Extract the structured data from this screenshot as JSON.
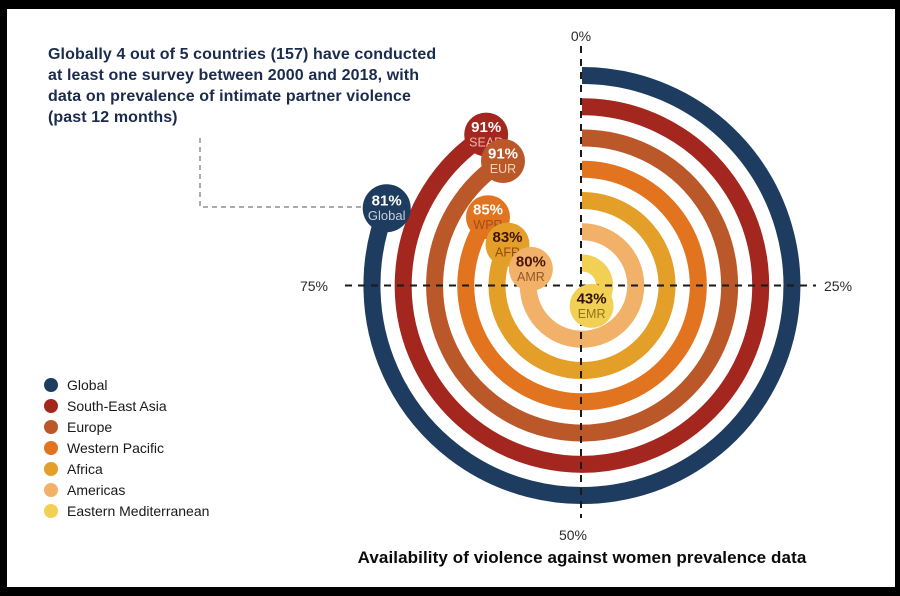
{
  "annotation": {
    "text": "Globally 4 out of 5 countries (157) have conducted at least one survey between 2000 and 2018, with data on prevalence of intimate partner violence (past 12 months)"
  },
  "chart_data": {
    "type": "radial-bar",
    "title": "Availability of violence against women prevalence data",
    "unit": "%",
    "direction": "clockwise-from-top",
    "angle_range_pct": [
      0,
      100
    ],
    "axis_ticks": [
      {
        "label": "0%",
        "value": 0
      },
      {
        "label": "25%",
        "value": 25
      },
      {
        "label": "50%",
        "value": 50
      },
      {
        "label": "75%",
        "value": 75
      }
    ],
    "series": [
      {
        "name": "Global",
        "code": "Global",
        "value": 81,
        "color": "#1d3c5f",
        "value_color": "#ffffff",
        "code_color": "#c7cfdc"
      },
      {
        "name": "South-East Asia",
        "code": "SEAR",
        "value": 91,
        "color": "#a3271f",
        "value_color": "#ffffff",
        "code_color": "#f0b5ac"
      },
      {
        "name": "Europe",
        "code": "EUR",
        "value": 91,
        "color": "#ba5829",
        "value_color": "#ffffff",
        "code_color": "#f7d2b6"
      },
      {
        "name": "Western Pacific",
        "code": "WPR",
        "value": 85,
        "color": "#e2741f",
        "value_color": "#ffffff",
        "code_color": "#9e4f16"
      },
      {
        "name": "Africa",
        "code": "AFR",
        "value": 83,
        "color": "#e39f27",
        "value_color": "#421408",
        "code_color": "#8f4a12"
      },
      {
        "name": "Americas",
        "code": "AMR",
        "value": 80,
        "color": "#f1b169",
        "value_color": "#4b1507",
        "code_color": "#945722"
      },
      {
        "name": "Eastern Mediterranean",
        "code": "EMR",
        "value": 43,
        "color": "#f1d054",
        "value_color": "#311104",
        "code_color": "#957219"
      }
    ]
  }
}
